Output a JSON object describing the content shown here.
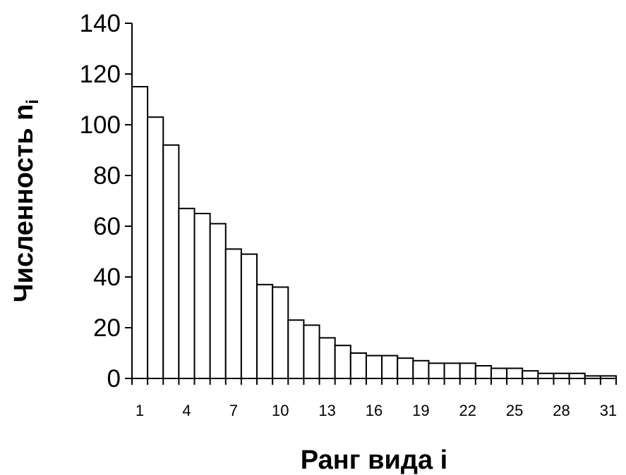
{
  "chart_data": {
    "type": "bar",
    "xlabel": "Ранг вида i",
    "ylabel_main": "Численность n",
    "ylabel_sub": "i",
    "ylim": [
      0,
      140
    ],
    "yticks": [
      0,
      20,
      40,
      60,
      80,
      100,
      120,
      140
    ],
    "xtick_labels": [
      "1",
      "4",
      "7",
      "10",
      "13",
      "16",
      "19",
      "22",
      "25",
      "28",
      "31"
    ],
    "xtick_ranks": [
      1,
      4,
      7,
      10,
      13,
      16,
      19,
      22,
      25,
      28,
      31
    ],
    "categories": [
      1,
      2,
      3,
      4,
      5,
      6,
      7,
      8,
      9,
      10,
      11,
      12,
      13,
      14,
      15,
      16,
      17,
      18,
      19,
      20,
      21,
      22,
      23,
      24,
      25,
      26,
      27,
      28,
      29,
      30,
      31
    ],
    "values": [
      115,
      103,
      92,
      67,
      65,
      61,
      51,
      49,
      37,
      36,
      23,
      21,
      16,
      13,
      10,
      9,
      9,
      8,
      7,
      6,
      6,
      6,
      5,
      4,
      4,
      3,
      2,
      2,
      2,
      1,
      1
    ],
    "grid": false,
    "bar_fill": "#ffffff",
    "bar_stroke": "#000000"
  }
}
